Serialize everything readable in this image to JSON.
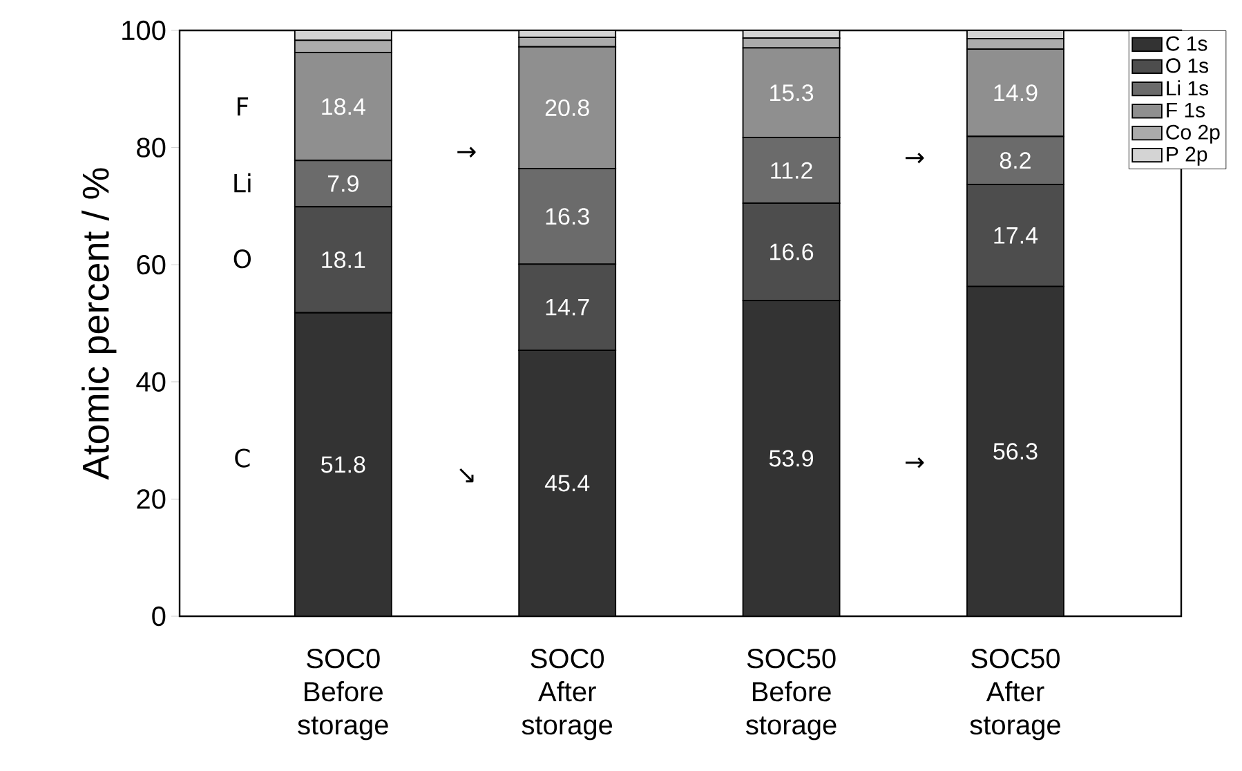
{
  "chart_data": {
    "type": "bar",
    "stacked": true,
    "ylabel": "Atomic percent / %",
    "categories": [
      "SOC0 Before storage",
      "SOC0 After storage",
      "SOC50 Before storage",
      "SOC50 After storage"
    ],
    "series": [
      {
        "name": "C 1s",
        "color": "#333333",
        "values": [
          51.8,
          45.4,
          53.9,
          56.3
        ],
        "value_labels": [
          "51.8",
          "45.4",
          "53.9",
          "56.3"
        ]
      },
      {
        "name": "O 1s",
        "color": "#4d4d4d",
        "values": [
          18.1,
          14.7,
          16.6,
          17.4
        ],
        "value_labels": [
          "18.1",
          "14.7",
          "16.6",
          "17.4"
        ]
      },
      {
        "name": "Li 1s",
        "color": "#6b6b6b",
        "values": [
          7.9,
          16.3,
          11.2,
          8.2
        ],
        "value_labels": [
          "7.9",
          "16.3",
          "11.2",
          "8.2"
        ]
      },
      {
        "name": "F 1s",
        "color": "#8f8f8f",
        "values": [
          18.4,
          20.8,
          15.3,
          14.9
        ],
        "value_labels": [
          "18.4",
          "20.8",
          "15.3",
          "14.9"
        ]
      },
      {
        "name": "Co 2p",
        "color": "#ababab",
        "values": [
          2.1,
          1.6,
          1.7,
          1.8
        ]
      },
      {
        "name": "P 2p",
        "color": "#d4d4d4",
        "values": [
          1.7,
          1.2,
          1.3,
          1.4
        ]
      }
    ],
    "ylim": [
      0,
      100
    ],
    "yticks": [
      0,
      20,
      40,
      60,
      80,
      100
    ],
    "grid": false,
    "legend": "top right",
    "annotations": [
      "F",
      "Li",
      "O",
      "C",
      "→",
      "↘",
      "→",
      "→"
    ]
  }
}
